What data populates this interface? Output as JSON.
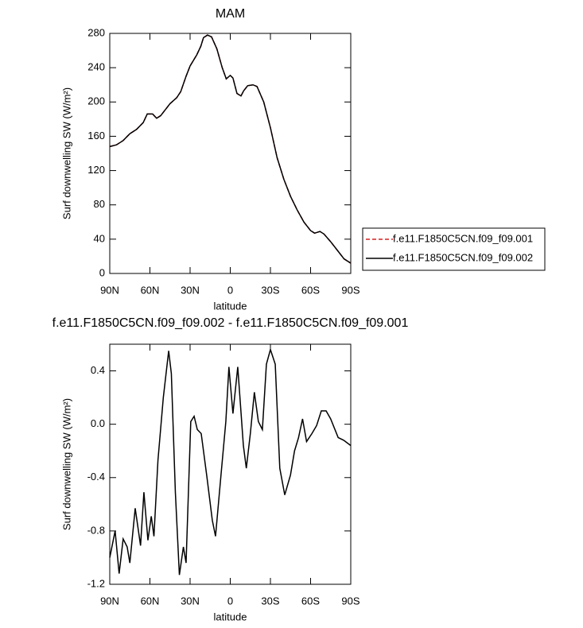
{
  "chart_data": [
    {
      "type": "line",
      "title": "MAM",
      "xlabel": "latitude",
      "ylabel": "Surf downwelling SW (W/m²)",
      "x": [
        90,
        85,
        80,
        75,
        70,
        65,
        62,
        58,
        55,
        52,
        48,
        45,
        40,
        37,
        33,
        30,
        25,
        22,
        20,
        17,
        14,
        10,
        6,
        3,
        0,
        -2,
        -5,
        -8,
        -10,
        -13,
        -17,
        -20,
        -25,
        -30,
        -35,
        -40,
        -45,
        -50,
        -55,
        -60,
        -63,
        -67,
        -70,
        -75,
        -80,
        -85,
        -90
      ],
      "series": [
        {
          "name": "f.e11.F1850C5CN.f09_f09.001",
          "color": "#d62020",
          "line_style": "dashed",
          "values": [
            148,
            150,
            155,
            163,
            168,
            176,
            186,
            186,
            181,
            184,
            192,
            198,
            205,
            212,
            230,
            242,
            255,
            265,
            275,
            278,
            276,
            262,
            240,
            227,
            231,
            228,
            210,
            207,
            213,
            219,
            220,
            218,
            200,
            170,
            135,
            110,
            90,
            74,
            60,
            50,
            47,
            49,
            46,
            37,
            27,
            17,
            12
          ]
        },
        {
          "name": "f.e11.F1850C5CN.f09_f09.002",
          "color": "#000000",
          "line_style": "solid",
          "values": [
            148,
            150,
            155,
            163,
            168,
            176,
            186,
            186,
            181,
            184,
            192,
            198,
            205,
            212,
            230,
            242,
            255,
            265,
            275,
            278,
            276,
            262,
            240,
            227,
            231,
            228,
            210,
            207,
            213,
            219,
            220,
            218,
            200,
            170,
            135,
            110,
            90,
            74,
            60,
            50,
            47,
            49,
            46,
            37,
            27,
            17,
            12
          ]
        }
      ],
      "xlim": [
        90,
        -90
      ],
      "xticks": [
        {
          "value": 90,
          "label": "90N"
        },
        {
          "value": 60,
          "label": "60N"
        },
        {
          "value": 30,
          "label": "30N"
        },
        0,
        {
          "value": -30,
          "label": "30S"
        },
        {
          "value": -60,
          "label": "60S"
        },
        {
          "value": -90,
          "label": "90S"
        }
      ],
      "ylim": [
        0,
        280
      ],
      "yticks": [
        0,
        40,
        80,
        120,
        160,
        200,
        240,
        280
      ],
      "legend": "right"
    },
    {
      "type": "line",
      "title": "f.e11.F1850C5CN.f09_f09.002 - f.e11.F1850C5CN.f09_f09.001",
      "xlabel": "latitude",
      "ylabel": "Surf downwelling SW (W/m²)",
      "x": [
        90,
        86,
        83,
        80,
        77,
        75,
        71,
        67,
        64.5,
        61.5,
        59,
        57,
        54,
        50,
        46,
        44,
        41,
        38,
        35,
        33,
        29.5,
        27,
        24.6,
        21.7,
        17.5,
        13.4,
        11,
        7,
        3.3,
        1,
        -2,
        -5.6,
        -9.8,
        -12,
        -15,
        -18,
        -21,
        -24,
        -27,
        -30,
        -33.6,
        -37,
        -40.7,
        -45,
        -48,
        -51,
        -54,
        -57,
        -61,
        -64.5,
        -68,
        -71.6,
        -75,
        -80.6,
        -84.7,
        -90
      ],
      "values": [
        -1.0,
        -0.8,
        -1.12,
        -0.86,
        -0.92,
        -1.04,
        -0.63,
        -0.91,
        -0.51,
        -0.87,
        -0.69,
        -0.84,
        -0.27,
        0.2,
        0.55,
        0.38,
        -0.51,
        -1.13,
        -0.92,
        -1.04,
        0.02,
        0.06,
        -0.04,
        -0.07,
        -0.39,
        -0.72,
        -0.84,
        -0.39,
        0.02,
        0.43,
        0.08,
        0.43,
        -0.16,
        -0.33,
        -0.07,
        0.24,
        0.02,
        -0.04,
        0.45,
        0.56,
        0.45,
        -0.33,
        -0.53,
        -0.38,
        -0.2,
        -0.1,
        0.04,
        -0.13,
        -0.07,
        -0.01,
        0.1,
        0.1,
        0.04,
        -0.1,
        -0.12,
        -0.16
      ],
      "color": "#000000",
      "xlim": [
        90,
        -90
      ],
      "xticks": [
        {
          "value": 90,
          "label": "90N"
        },
        {
          "value": 60,
          "label": "60N"
        },
        {
          "value": 30,
          "label": "30N"
        },
        0,
        {
          "value": -30,
          "label": "30S"
        },
        {
          "value": -60,
          "label": "60S"
        },
        {
          "value": -90,
          "label": "90S"
        }
      ],
      "ylim": [
        -1.2,
        0.6
      ],
      "yticks": [
        -1.2,
        -0.8,
        -0.4,
        {
          "value": 0,
          "label": "0.0"
        },
        0.4
      ]
    }
  ]
}
